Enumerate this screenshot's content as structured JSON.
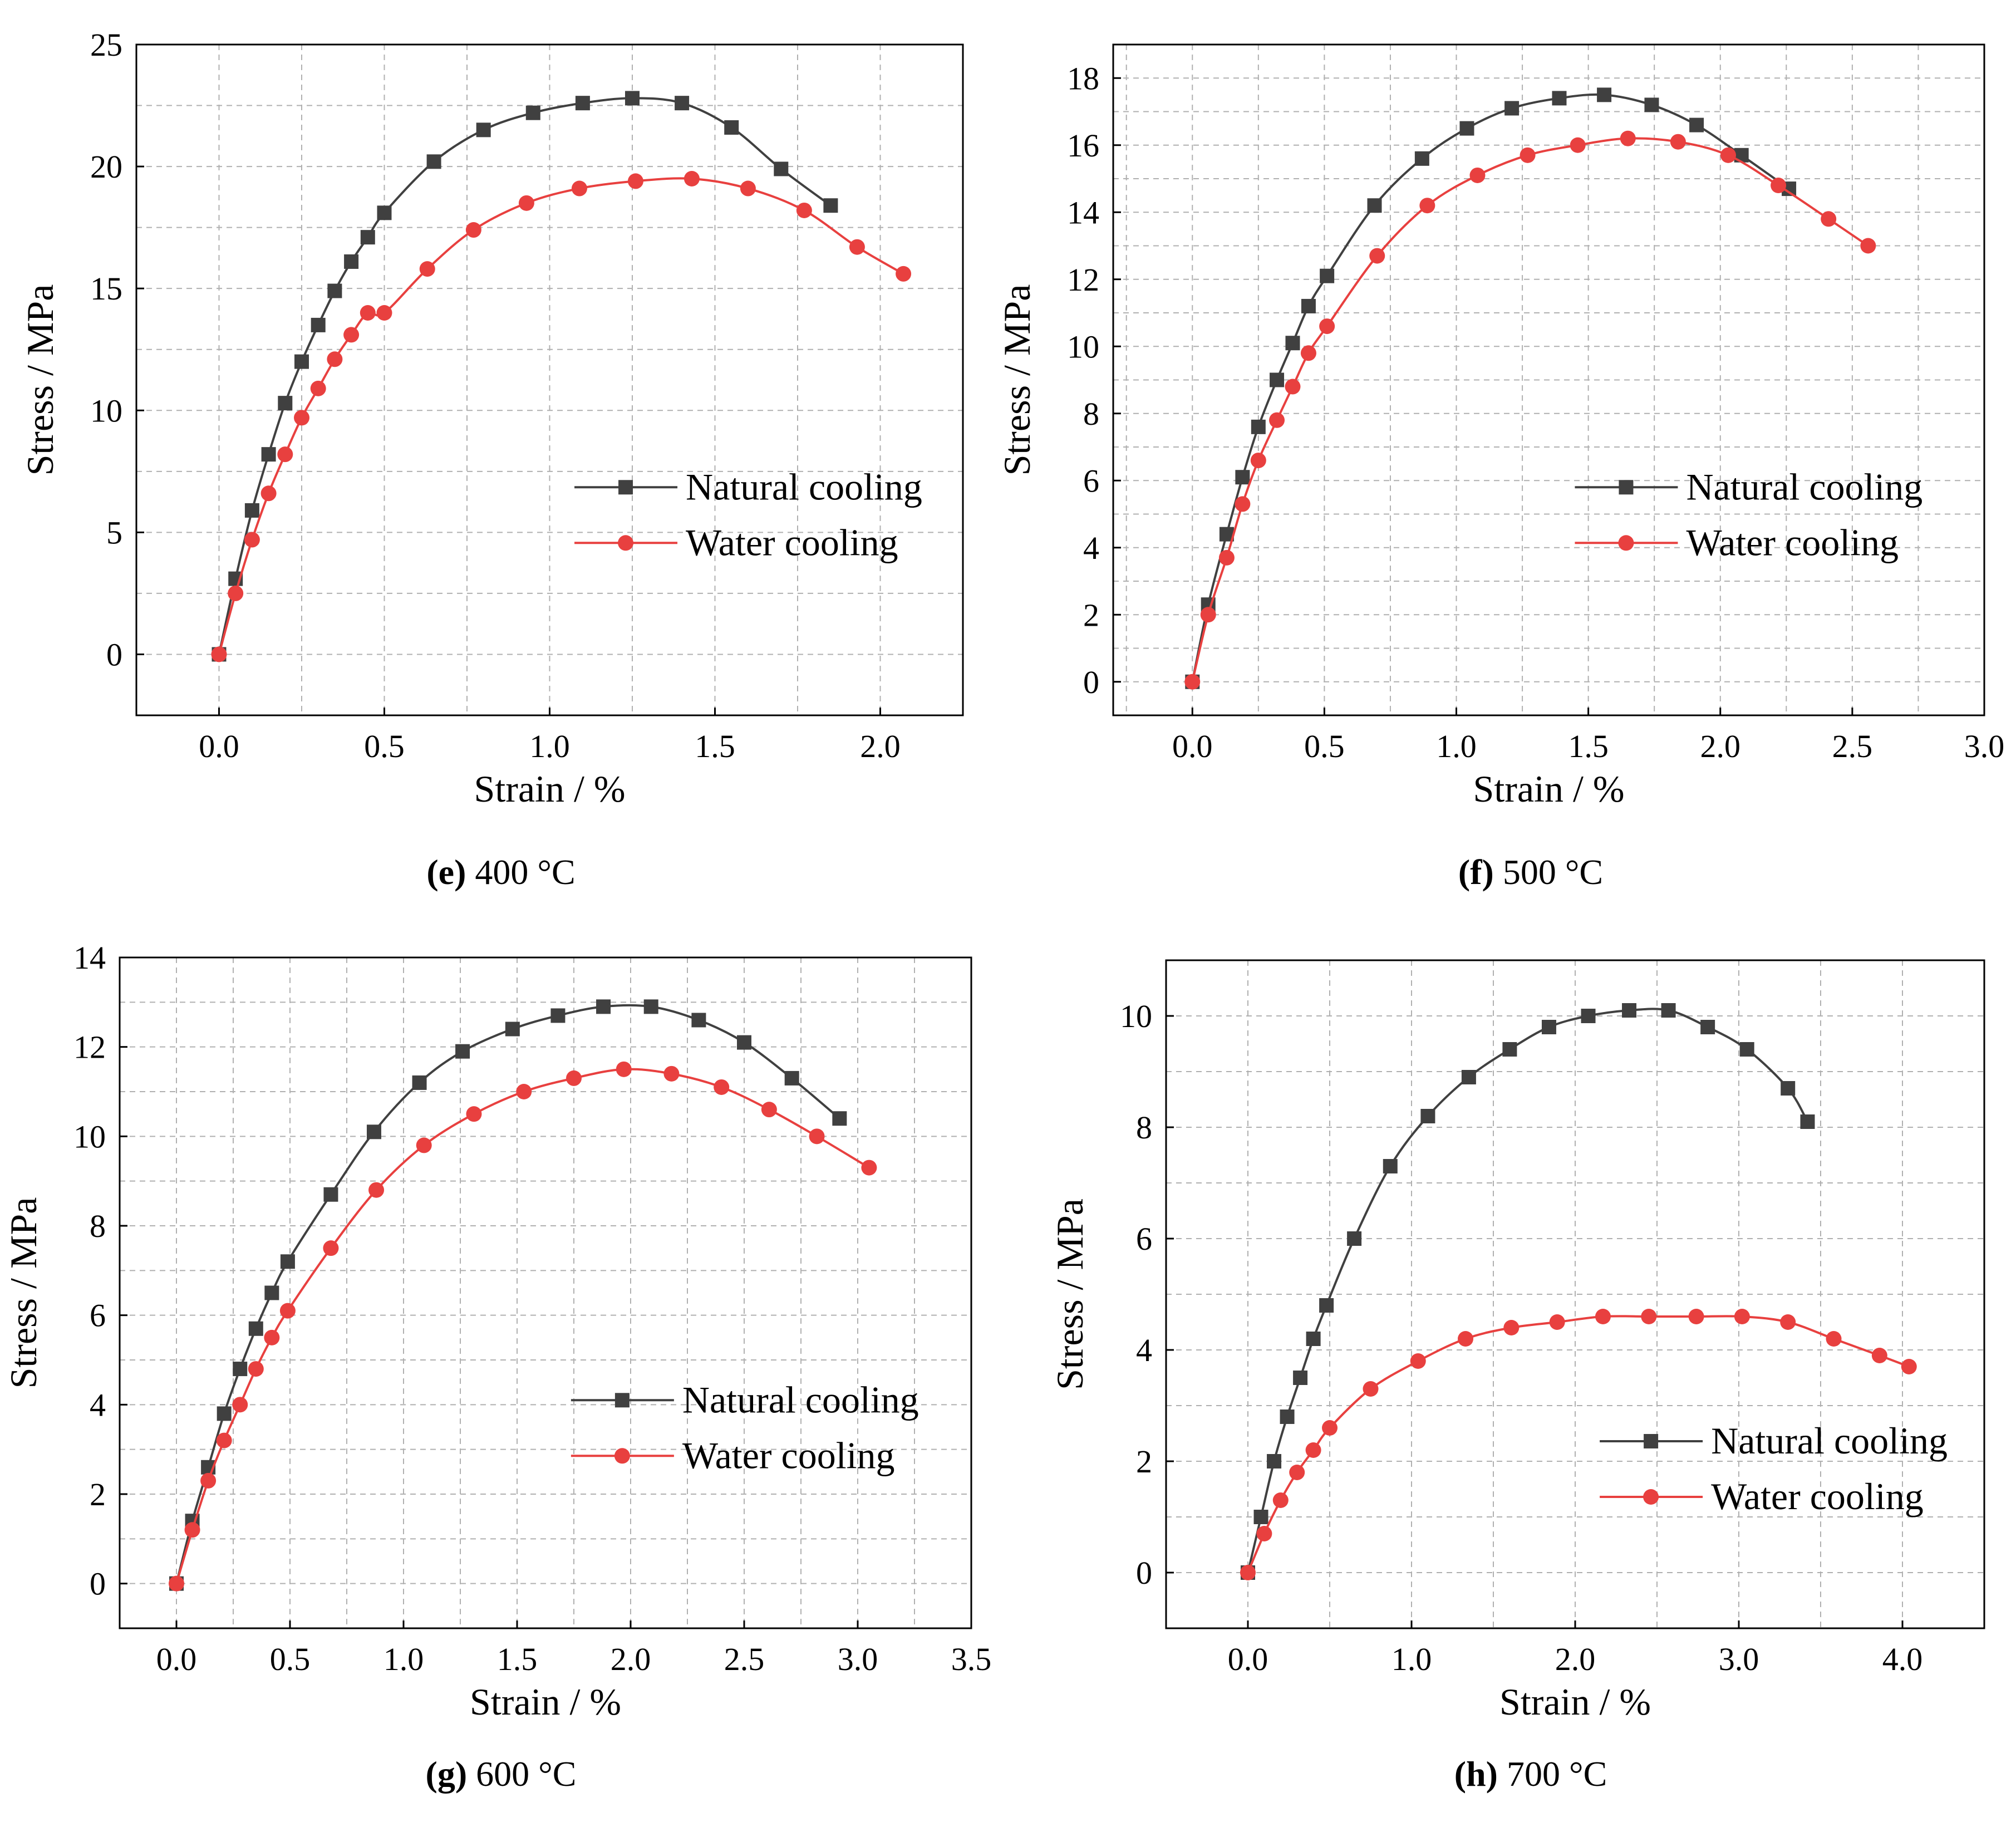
{
  "figure": {
    "colors": {
      "natural": "#404040",
      "water": "#e8403f",
      "grid": "#b0b0b0",
      "frame": "#000000"
    },
    "legend": {
      "natural_label": "Natural cooling",
      "water_label": "Water cooling",
      "placement": "center-right"
    },
    "xlabel": "Strain / %",
    "ylabel": "Stress / MPa"
  },
  "chart_data": [
    {
      "id": "e",
      "type": "line",
      "caption_letter": "e",
      "caption_text": "400 °C",
      "xlabel": "Strain / %",
      "ylabel": "Stress / MPa",
      "xlim": [
        -0.25,
        2.25
      ],
      "ylim": [
        -2.5,
        25
      ],
      "xticks": [
        "0.0",
        "0.5",
        "1.0",
        "1.5",
        "2.0"
      ],
      "xtick_values": [
        0,
        0.5,
        1.0,
        1.5,
        2.0
      ],
      "yticks": [
        "0",
        "5",
        "10",
        "15",
        "20",
        "25"
      ],
      "ytick_values": [
        0,
        5,
        10,
        15,
        20,
        25
      ],
      "series": [
        {
          "name": "Natural cooling",
          "marker": "square",
          "x": [
            0,
            0.05,
            0.1,
            0.15,
            0.2,
            0.25,
            0.3,
            0.35,
            0.4,
            0.45,
            0.5,
            0.65,
            0.8,
            0.95,
            1.1,
            1.25,
            1.4,
            1.55,
            1.7,
            1.85
          ],
          "y": [
            0,
            3.1,
            5.9,
            8.2,
            10.3,
            12.0,
            13.5,
            14.9,
            16.1,
            17.1,
            18.1,
            20.2,
            21.5,
            22.2,
            22.6,
            22.8,
            22.6,
            21.6,
            19.9,
            18.4
          ]
        },
        {
          "name": "Water cooling",
          "marker": "circle",
          "x": [
            0,
            0.05,
            0.1,
            0.15,
            0.2,
            0.25,
            0.3,
            0.35,
            0.4,
            0.45,
            0.5,
            0.63,
            0.77,
            0.93,
            1.09,
            1.26,
            1.43,
            1.6,
            1.77,
            1.93,
            2.07
          ],
          "y": [
            0,
            2.5,
            4.7,
            6.6,
            8.2,
            9.7,
            10.9,
            12.1,
            13.1,
            14.0,
            14.0,
            15.8,
            17.4,
            18.5,
            19.1,
            19.4,
            19.5,
            19.1,
            18.2,
            16.7,
            15.6
          ]
        }
      ]
    },
    {
      "id": "f",
      "type": "line",
      "caption_letter": "f",
      "caption_text": "500 °C",
      "xlabel": "Strain / %",
      "ylabel": "Stress / MPa",
      "xlim": [
        -0.3,
        3.0
      ],
      "ylim": [
        -1,
        19
      ],
      "xticks": [
        "0.0",
        "0.5",
        "1.0",
        "1.5",
        "2.0",
        "2.5",
        "3.0"
      ],
      "xtick_values": [
        0,
        0.5,
        1.0,
        1.5,
        2.0,
        2.5,
        3.0
      ],
      "yticks": [
        "0",
        "2",
        "4",
        "6",
        "8",
        "10",
        "12",
        "14",
        "16",
        "18"
      ],
      "ytick_values": [
        0,
        2,
        4,
        6,
        8,
        10,
        12,
        14,
        16,
        18
      ],
      "series": [
        {
          "name": "Natural cooling",
          "marker": "square",
          "x": [
            0,
            0.06,
            0.13,
            0.19,
            0.25,
            0.32,
            0.38,
            0.44,
            0.51,
            0.69,
            0.87,
            1.04,
            1.21,
            1.39,
            1.56,
            1.74,
            1.91,
            2.08,
            2.26
          ],
          "y": [
            0,
            2.3,
            4.4,
            6.1,
            7.6,
            9.0,
            10.1,
            11.2,
            12.1,
            14.2,
            15.6,
            16.5,
            17.1,
            17.4,
            17.5,
            17.2,
            16.6,
            15.7,
            14.7
          ]
        },
        {
          "name": "Water cooling",
          "marker": "circle",
          "x": [
            0,
            0.06,
            0.13,
            0.19,
            0.25,
            0.32,
            0.38,
            0.44,
            0.51,
            0.7,
            0.89,
            1.08,
            1.27,
            1.46,
            1.65,
            1.84,
            2.03,
            2.22,
            2.41,
            2.56
          ],
          "y": [
            0,
            2.0,
            3.7,
            5.3,
            6.6,
            7.8,
            8.8,
            9.8,
            10.6,
            12.7,
            14.2,
            15.1,
            15.7,
            16.0,
            16.2,
            16.1,
            15.7,
            14.8,
            13.8,
            13.0
          ]
        }
      ]
    },
    {
      "id": "g",
      "type": "line",
      "caption_letter": "g",
      "caption_text": "600 °C",
      "xlabel": "Strain / %",
      "ylabel": "Stress / MPa",
      "xlim": [
        -0.25,
        3.5
      ],
      "ylim": [
        -1,
        14
      ],
      "xticks": [
        "0.0",
        "0.5",
        "1.0",
        "1.5",
        "2.0",
        "2.5",
        "3.0",
        "3.5"
      ],
      "xtick_values": [
        0,
        0.5,
        1.0,
        1.5,
        2.0,
        2.5,
        3.0,
        3.5
      ],
      "yticks": [
        "0",
        "2",
        "4",
        "6",
        "8",
        "10",
        "12",
        "14"
      ],
      "ytick_values": [
        0,
        2,
        4,
        6,
        8,
        10,
        12,
        14
      ],
      "series": [
        {
          "name": "Natural cooling",
          "marker": "square",
          "x": [
            0,
            0.07,
            0.14,
            0.21,
            0.28,
            0.35,
            0.42,
            0.49,
            0.68,
            0.87,
            1.07,
            1.26,
            1.48,
            1.68,
            1.88,
            2.09,
            2.3,
            2.5,
            2.71,
            2.92
          ],
          "y": [
            0,
            1.4,
            2.6,
            3.8,
            4.8,
            5.7,
            6.5,
            7.2,
            8.7,
            10.1,
            11.2,
            11.9,
            12.4,
            12.7,
            12.9,
            12.9,
            12.6,
            12.1,
            11.3,
            10.4
          ]
        },
        {
          "name": "Water cooling",
          "marker": "circle",
          "x": [
            0,
            0.07,
            0.14,
            0.21,
            0.28,
            0.35,
            0.42,
            0.49,
            0.68,
            0.88,
            1.09,
            1.31,
            1.53,
            1.75,
            1.97,
            2.18,
            2.4,
            2.61,
            2.82,
            3.05
          ],
          "y": [
            0,
            1.2,
            2.3,
            3.2,
            4.0,
            4.8,
            5.5,
            6.1,
            7.5,
            8.8,
            9.8,
            10.5,
            11.0,
            11.3,
            11.5,
            11.4,
            11.1,
            10.6,
            10.0,
            9.3
          ]
        }
      ]
    },
    {
      "id": "h",
      "type": "line",
      "caption_letter": "h",
      "caption_text": "700 °C",
      "xlabel": "Strain / %",
      "ylabel": "Stress / MPa",
      "xlim": [
        -0.5,
        4.5
      ],
      "ylim": [
        -1,
        11
      ],
      "xticks": [
        "0.0",
        "1.0",
        "2.0",
        "3.0",
        "4.0"
      ],
      "xtick_values": [
        0,
        1.0,
        2.0,
        3.0,
        4.0
      ],
      "yticks": [
        "0",
        "2",
        "4",
        "6",
        "8",
        "10"
      ],
      "ytick_values": [
        0,
        2,
        4,
        6,
        8,
        10
      ],
      "series": [
        {
          "name": "Natural cooling",
          "marker": "square",
          "x": [
            0,
            0.08,
            0.16,
            0.24,
            0.32,
            0.4,
            0.48,
            0.65,
            0.87,
            1.1,
            1.35,
            1.6,
            1.84,
            2.08,
            2.33,
            2.57,
            2.81,
            3.05,
            3.3,
            3.42
          ],
          "y": [
            0,
            1.0,
            2.0,
            2.8,
            3.5,
            4.2,
            4.8,
            6.0,
            7.3,
            8.2,
            8.9,
            9.4,
            9.8,
            10.0,
            10.1,
            10.1,
            9.8,
            9.4,
            8.7,
            8.1
          ]
        },
        {
          "name": "Water cooling",
          "marker": "circle",
          "x": [
            0,
            0.1,
            0.2,
            0.3,
            0.4,
            0.5,
            0.75,
            1.04,
            1.33,
            1.61,
            1.89,
            2.17,
            2.45,
            2.74,
            3.02,
            3.3,
            3.58,
            3.86,
            4.04
          ],
          "y": [
            0,
            0.7,
            1.3,
            1.8,
            2.2,
            2.6,
            3.3,
            3.8,
            4.2,
            4.4,
            4.5,
            4.6,
            4.6,
            4.6,
            4.6,
            4.5,
            4.2,
            3.9,
            3.7
          ]
        }
      ]
    }
  ]
}
